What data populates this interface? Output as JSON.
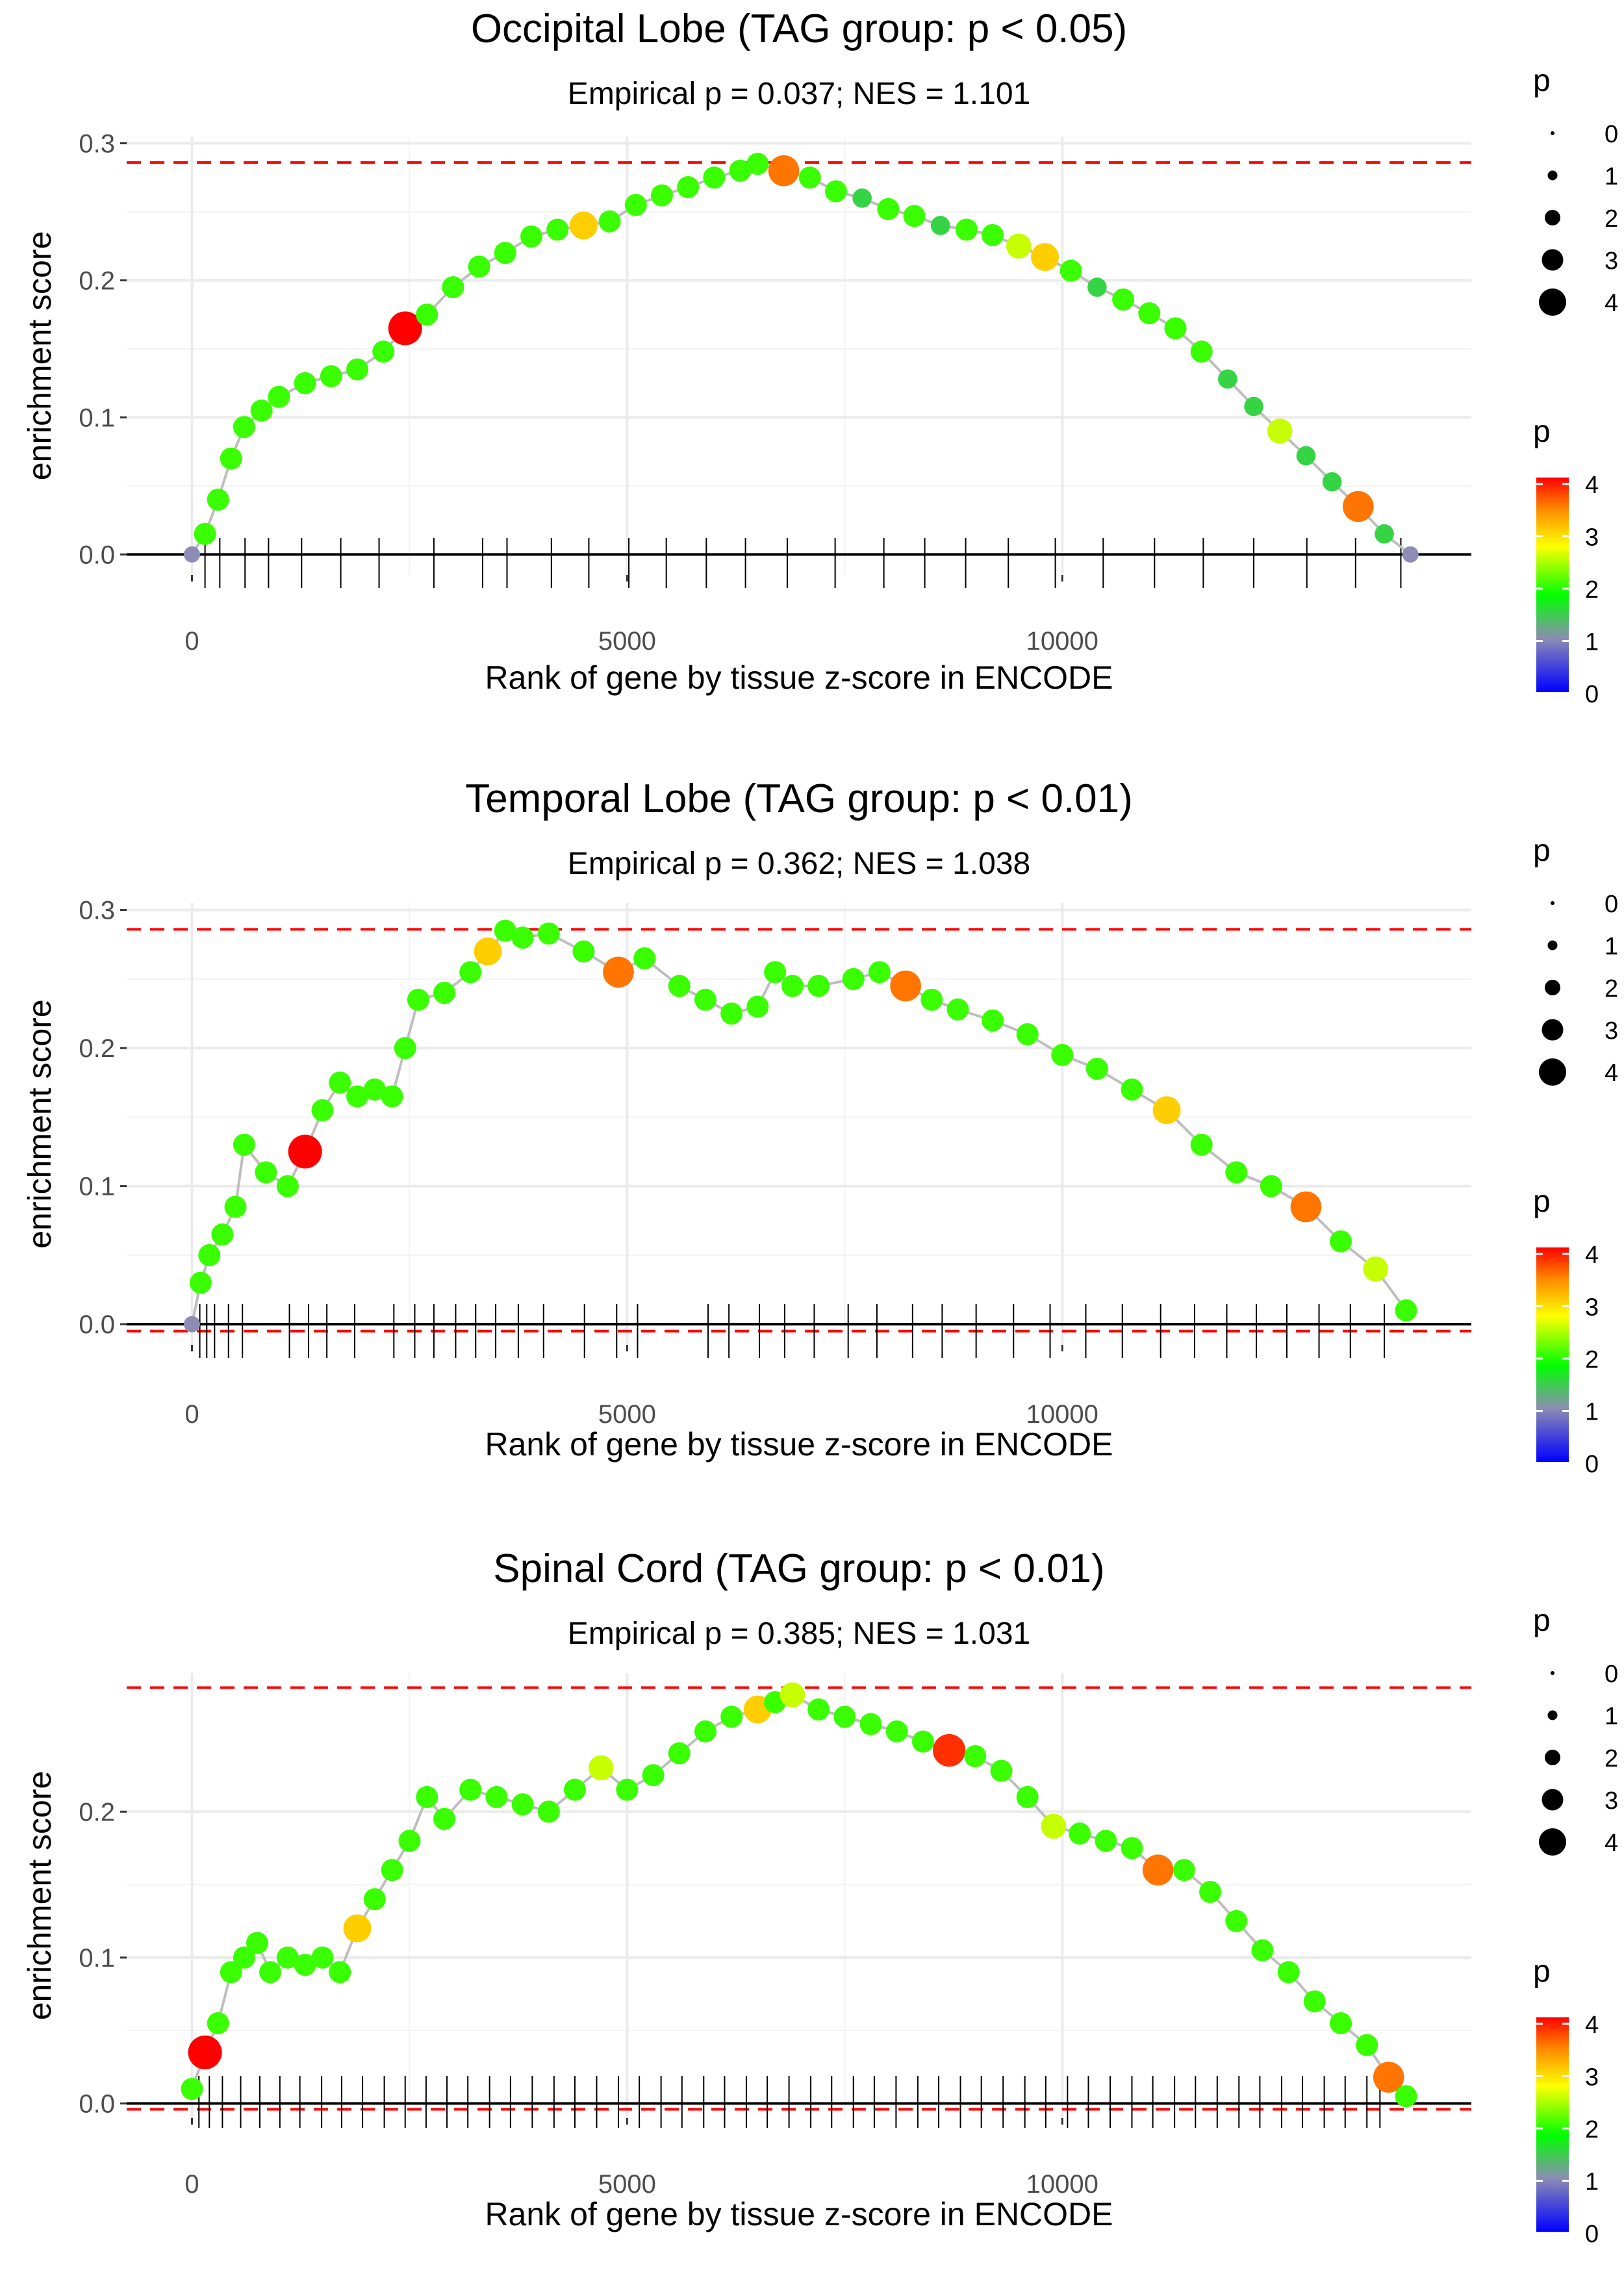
{
  "chart_data": [
    {
      "type": "line",
      "title": "Occipital Lobe (TAG group: p < 0.05)",
      "subtitle": "Empirical p = 0.037; NES = 1.101",
      "xlabel": "Rank of gene by tissue z-score in ENCODE",
      "ylabel": "enrichment score",
      "xlim": [
        -750,
        14700
      ],
      "ylim": [
        -0.015,
        0.305
      ],
      "xticks": [
        0,
        5000,
        10000
      ],
      "xtick_labels": [
        "0",
        "5000",
        "10000"
      ],
      "yticks": [
        0.0,
        0.1,
        0.2,
        0.3
      ],
      "ytick_labels": [
        "0.0",
        "0.1",
        "0.2",
        "0.3"
      ],
      "max_es_line": 0.286,
      "min_es_line": null,
      "x": [
        0,
        150,
        300,
        450,
        600,
        800,
        1000,
        1300,
        1600,
        1900,
        2200,
        2450,
        2700,
        3000,
        3300,
        3600,
        3900,
        4200,
        4500,
        4800,
        5100,
        5400,
        5700,
        6000,
        6300,
        6500,
        6800,
        7100,
        7400,
        7700,
        8000,
        8300,
        8600,
        8900,
        9200,
        9500,
        9800,
        10100,
        10400,
        10700,
        11000,
        11300,
        11600,
        11900,
        12200,
        12500,
        12800,
        13100,
        13400,
        13700,
        14000
      ],
      "y": [
        0.0,
        0.015,
        0.04,
        0.07,
        0.093,
        0.105,
        0.115,
        0.125,
        0.13,
        0.135,
        0.148,
        0.165,
        0.175,
        0.195,
        0.21,
        0.22,
        0.232,
        0.237,
        0.24,
        0.243,
        0.255,
        0.262,
        0.268,
        0.275,
        0.28,
        0.285,
        0.28,
        0.275,
        0.265,
        0.26,
        0.252,
        0.247,
        0.24,
        0.237,
        0.233,
        0.225,
        0.217,
        0.207,
        0.195,
        0.186,
        0.176,
        0.165,
        0.148,
        0.128,
        0.108,
        0.09,
        0.072,
        0.053,
        0.035,
        0.015,
        0.0
      ],
      "p": [
        1,
        2,
        2,
        2,
        2,
        2,
        2,
        2,
        2,
        2,
        2,
        4,
        2,
        2,
        2,
        2,
        2,
        2,
        3,
        2,
        2,
        2,
        2,
        2,
        2,
        2,
        3.5,
        2,
        2,
        1.5,
        2,
        2,
        1.5,
        2,
        2,
        2.5,
        3,
        2,
        1.5,
        2,
        2,
        2,
        2,
        1.5,
        1.5,
        2.5,
        1.5,
        1.5,
        3.5,
        1.5,
        1
      ],
      "gene_ranks": [
        150,
        320,
        610,
        880,
        1260,
        1710,
        2150,
        2780,
        3340,
        3620,
        4130,
        4560,
        5020,
        5450,
        5910,
        6360,
        6840,
        7390,
        7950,
        8420,
        8890,
        9380,
        9920,
        10470,
        11060,
        11620,
        12200,
        12810,
        13370,
        13890
      ]
    },
    {
      "type": "line",
      "title": "Temporal Lobe (TAG group: p < 0.01)",
      "subtitle": "Empirical p = 0.362; NES = 1.038",
      "xlabel": "Rank of gene by tissue z-score in ENCODE",
      "ylabel": "enrichment score",
      "xlim": [
        -750,
        14700
      ],
      "ylim": [
        -0.015,
        0.305
      ],
      "xticks": [
        0,
        5000,
        10000
      ],
      "xtick_labels": [
        "0",
        "5000",
        "10000"
      ],
      "yticks": [
        0.0,
        0.1,
        0.2,
        0.3
      ],
      "ytick_labels": [
        "0.0",
        "0.1",
        "0.2",
        "0.3"
      ],
      "max_es_line": 0.286,
      "min_es_line": -0.005,
      "x": [
        0,
        100,
        200,
        350,
        500,
        600,
        850,
        1100,
        1300,
        1500,
        1700,
        1900,
        2100,
        2300,
        2450,
        2600,
        2900,
        3200,
        3400,
        3600,
        3800,
        4100,
        4500,
        4900,
        5200,
        5600,
        5900,
        6200,
        6500,
        6700,
        6900,
        7200,
        7600,
        7900,
        8200,
        8500,
        8800,
        9200,
        9600,
        10000,
        10400,
        10800,
        11200,
        11600,
        12000,
        12400,
        12800,
        13200,
        13600,
        13950
      ],
      "y": [
        0.0,
        0.03,
        0.05,
        0.065,
        0.085,
        0.13,
        0.11,
        0.1,
        0.125,
        0.155,
        0.175,
        0.165,
        0.17,
        0.165,
        0.2,
        0.235,
        0.24,
        0.255,
        0.27,
        0.285,
        0.28,
        0.283,
        0.27,
        0.255,
        0.265,
        0.245,
        0.235,
        0.225,
        0.23,
        0.255,
        0.245,
        0.245,
        0.25,
        0.255,
        0.245,
        0.235,
        0.228,
        0.22,
        0.21,
        0.195,
        0.185,
        0.17,
        0.155,
        0.13,
        0.11,
        0.1,
        0.085,
        0.06,
        0.04,
        0.01
      ],
      "p": [
        1,
        2,
        2,
        2,
        2,
        2,
        2,
        2,
        4,
        2,
        2,
        2,
        2,
        2,
        2,
        2,
        2,
        2,
        3,
        2,
        2,
        2,
        2,
        3.5,
        2,
        2,
        2,
        2,
        2,
        2,
        2,
        2,
        2,
        2,
        3.5,
        2,
        2,
        2,
        2,
        2,
        2,
        2,
        3,
        2,
        2,
        2,
        3.5,
        2,
        2.5,
        2
      ],
      "gene_ranks": [
        90,
        170,
        260,
        420,
        580,
        1120,
        1340,
        1550,
        1870,
        2320,
        2560,
        2780,
        3030,
        3260,
        3490,
        3750,
        4040,
        4510,
        4880,
        5120,
        5930,
        6170,
        6520,
        6810,
        7150,
        7540,
        7870,
        8280,
        8620,
        9010,
        9440,
        9860,
        10270,
        10690,
        11130,
        11520,
        11890,
        12230,
        12580,
        12950,
        13310,
        13700
      ]
    },
    {
      "type": "line",
      "title": "Spinal Cord (TAG group: p < 0.01)",
      "subtitle": "Empirical p = 0.385; NES = 1.031",
      "xlabel": "Rank of gene by tissue z-score in ENCODE",
      "ylabel": "enrichment score",
      "xlim": [
        -750,
        14700
      ],
      "ylim": [
        -0.01,
        0.295
      ],
      "xticks": [
        0,
        5000,
        10000
      ],
      "xtick_labels": [
        "0",
        "5000",
        "10000"
      ],
      "yticks": [
        0.0,
        0.1,
        0.2
      ],
      "ytick_labels": [
        "0.0",
        "0.1",
        "0.2"
      ],
      "max_es_line": 0.285,
      "min_es_line": -0.004,
      "x": [
        0,
        150,
        300,
        450,
        600,
        750,
        900,
        1100,
        1300,
        1500,
        1700,
        1900,
        2100,
        2300,
        2500,
        2700,
        2900,
        3200,
        3500,
        3800,
        4100,
        4400,
        4700,
        5000,
        5300,
        5600,
        5900,
        6200,
        6500,
        6700,
        6900,
        7200,
        7500,
        7800,
        8100,
        8400,
        8700,
        9000,
        9300,
        9600,
        9900,
        10200,
        10500,
        10800,
        11100,
        11400,
        11700,
        12000,
        12300,
        12600,
        12900,
        13200,
        13500,
        13750,
        13950
      ],
      "y": [
        0.01,
        0.035,
        0.055,
        0.09,
        0.1,
        0.11,
        0.09,
        0.1,
        0.095,
        0.1,
        0.09,
        0.12,
        0.14,
        0.16,
        0.18,
        0.21,
        0.195,
        0.215,
        0.21,
        0.205,
        0.2,
        0.215,
        0.23,
        0.215,
        0.225,
        0.24,
        0.255,
        0.265,
        0.27,
        0.275,
        0.28,
        0.27,
        0.265,
        0.26,
        0.255,
        0.248,
        0.242,
        0.238,
        0.228,
        0.21,
        0.19,
        0.185,
        0.18,
        0.175,
        0.16,
        0.16,
        0.145,
        0.125,
        0.105,
        0.09,
        0.07,
        0.055,
        0.04,
        0.018,
        0.005
      ],
      "p": [
        2,
        4,
        2,
        2,
        2,
        2,
        2,
        2,
        2,
        2,
        2,
        3,
        2,
        2,
        2,
        2,
        2,
        2,
        2,
        2,
        2,
        2,
        2.5,
        2,
        2,
        2,
        2,
        2,
        3,
        2,
        2.5,
        2,
        2,
        2,
        2,
        2,
        3.8,
        2,
        2,
        2,
        2.5,
        2,
        2,
        2,
        3.5,
        2,
        2,
        2,
        2,
        2,
        2,
        2,
        2,
        3.5,
        2
      ],
      "gene_ranks": [
        80,
        200,
        350,
        560,
        780,
        1010,
        1240,
        1490,
        1720,
        1960,
        2210,
        2450,
        2690,
        2930,
        3170,
        3420,
        3660,
        3910,
        4160,
        4400,
        4650,
        4900,
        5140,
        5390,
        5630,
        5880,
        6120,
        6370,
        6610,
        6860,
        7110,
        7350,
        7600,
        7840,
        8090,
        8340,
        8580,
        8830,
        9070,
        9320,
        9570,
        9810,
        10060,
        10300,
        10550,
        10800,
        11040,
        11290,
        11530,
        11780,
        12030,
        12270,
        12520,
        12760,
        13010,
        13250,
        13500,
        13650
      ]
    }
  ],
  "legends": {
    "size_title": "p",
    "size_labels": [
      "0",
      "1",
      "2",
      "3",
      "4"
    ],
    "color_title": "p",
    "color_labels": [
      "4",
      "3",
      "2",
      "1",
      "0"
    ],
    "colors": {
      "dashed": "#ff0000",
      "line": "#bebebe",
      "grid": "#ebebeb",
      "scale": [
        "#0000ff",
        "#8c8cb4",
        "#00ff00",
        "#ffff00",
        "#ff8c00",
        "#ff0000"
      ]
    }
  }
}
